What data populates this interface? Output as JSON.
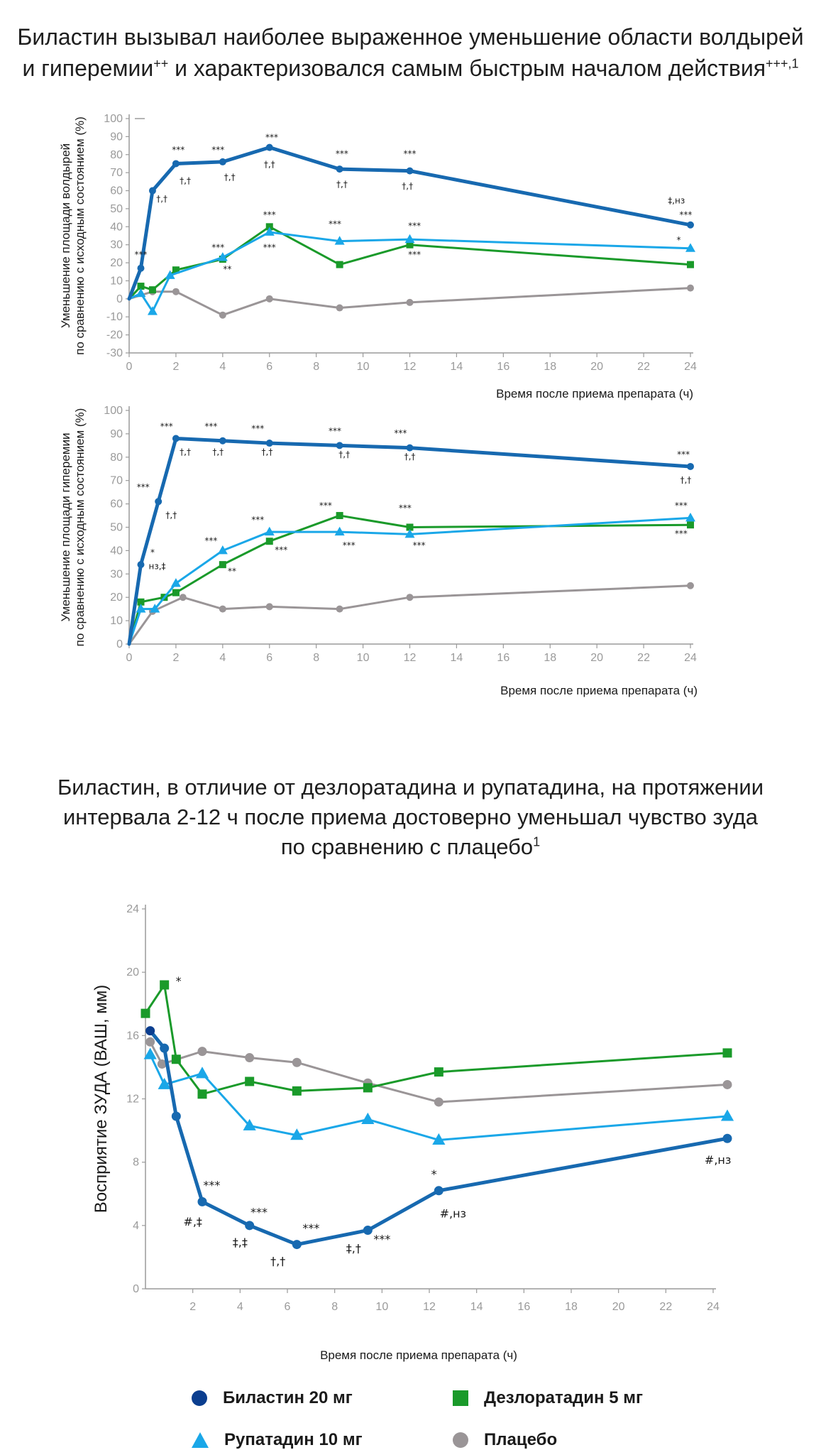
{
  "heading1": {
    "line1": "Биластин вызывал наиболее выраженное уменьшение области волдырей",
    "line2": "и гиперемии",
    "line2_sup1": "++",
    "line2_rest": " и характеризовался самым быстрым началом действия",
    "line2_sup2": "+++,1"
  },
  "heading2": {
    "line1": "Биластин, в отличие от дезлоратадина и рупатадина, на протяжении",
    "line2": "интервала 2-12 ч после приема достоверно уменьшал чувство зуда",
    "line3": "по сравнению с плацебо",
    "line3_sup": "1"
  },
  "colors": {
    "bilastine": "#1769b0",
    "bilastine_dark": "#0b3e8f",
    "desloratadine": "#1a9a2a",
    "rupatadine": "#1aa7e8",
    "placebo": "#9a9597",
    "axis": "#9a9a9a"
  },
  "legend": {
    "bilastine": "Биластин 20 мг",
    "desloratadine": "Дезлоратадин 5 мг",
    "rupatadine": "Рупатадин 10 мг",
    "placebo": "Плацебо"
  },
  "chart_data": [
    {
      "type": "line",
      "title": "",
      "xlabel": "Время после приема препарата (ч)",
      "ylabel_line1": "Уменьшение площади волдырей",
      "ylabel_line2": "по сравнению с исходным состоянием (%)",
      "xlim": [
        0,
        24
      ],
      "ylim": [
        -30,
        100
      ],
      "x_ticks": [
        "0",
        "2",
        "4",
        "6",
        "8",
        "10",
        "12",
        "14",
        "16",
        "18",
        "20",
        "22",
        "24"
      ],
      "y_ticks": [
        "100",
        "90",
        "80",
        "70",
        "60",
        "50",
        "40",
        "30",
        "20",
        "10",
        "0",
        "-10",
        "-20",
        "-30"
      ],
      "series": [
        {
          "key": "bilastine",
          "points": [
            [
              0,
              0
            ],
            [
              0.5,
              17
            ],
            [
              1,
              60
            ],
            [
              2,
              75
            ],
            [
              4,
              76
            ],
            [
              6,
              84
            ],
            [
              9,
              72
            ],
            [
              12,
              71
            ],
            [
              24,
              41
            ]
          ]
        },
        {
          "key": "rupatadine",
          "points": [
            [
              0,
              0
            ],
            [
              0.5,
              3
            ],
            [
              1,
              -7
            ],
            [
              1.75,
              13
            ],
            [
              4,
              23
            ],
            [
              6,
              37
            ],
            [
              9,
              32
            ],
            [
              12,
              33
            ],
            [
              24,
              28
            ]
          ]
        },
        {
          "key": "desloratadine",
          "points": [
            [
              0,
              0
            ],
            [
              0.5,
              7
            ],
            [
              1,
              5
            ],
            [
              2,
              16
            ],
            [
              4,
              22
            ],
            [
              6,
              40
            ],
            [
              9,
              19
            ],
            [
              12,
              30
            ],
            [
              24,
              19
            ]
          ]
        },
        {
          "key": "placebo",
          "points": [
            [
              0,
              0
            ],
            [
              1,
              4
            ],
            [
              2,
              4
            ],
            [
              4,
              -9
            ],
            [
              6,
              0
            ],
            [
              9,
              -5
            ],
            [
              12,
              -2
            ],
            [
              24,
              6
            ]
          ]
        }
      ],
      "annotations": [
        {
          "x": 0.5,
          "y": 23,
          "text": "***"
        },
        {
          "x": 1.4,
          "y": 54,
          "text": "†,†"
        },
        {
          "x": 2.1,
          "y": 81,
          "text": "***"
        },
        {
          "x": 2.4,
          "y": 64,
          "text": "†,†"
        },
        {
          "x": 3.8,
          "y": 81,
          "text": "***"
        },
        {
          "x": 4.3,
          "y": 66,
          "text": "†,†"
        },
        {
          "x": 6.1,
          "y": 88,
          "text": "***"
        },
        {
          "x": 6.0,
          "y": 73,
          "text": "†,†"
        },
        {
          "x": 9.1,
          "y": 79,
          "text": "***"
        },
        {
          "x": 9.1,
          "y": 62,
          "text": "†,†"
        },
        {
          "x": 12.0,
          "y": 79,
          "text": "***"
        },
        {
          "x": 11.9,
          "y": 61,
          "text": "†,†"
        },
        {
          "x": 23.4,
          "y": 53,
          "text": "‡,нз"
        },
        {
          "x": 23.8,
          "y": 45,
          "text": "***"
        },
        {
          "x": 3.8,
          "y": 27,
          "text": "***"
        },
        {
          "x": 4.2,
          "y": 15,
          "text": "**"
        },
        {
          "x": 6.0,
          "y": 45,
          "text": "***"
        },
        {
          "x": 6.0,
          "y": 27,
          "text": "***"
        },
        {
          "x": 8.8,
          "y": 40,
          "text": "***"
        },
        {
          "x": 12.2,
          "y": 39,
          "text": "***"
        },
        {
          "x": 12.2,
          "y": 23,
          "text": "***"
        },
        {
          "x": 23.5,
          "y": 31,
          "text": "*"
        }
      ]
    },
    {
      "type": "line",
      "title": "",
      "xlabel": "Время после приема препарата (ч)",
      "ylabel_line1": "Уменьшение площади гиперемии",
      "ylabel_line2": "по сравнению с исходным состоянием (%)",
      "xlim": [
        0,
        24
      ],
      "ylim": [
        0,
        100
      ],
      "x_ticks": [
        "0",
        "2",
        "4",
        "6",
        "8",
        "10",
        "12",
        "14",
        "16",
        "18",
        "20",
        "22",
        "24"
      ],
      "y_ticks": [
        "100",
        "90",
        "80",
        "70",
        "60",
        "50",
        "40",
        "30",
        "20",
        "10",
        "0"
      ],
      "series": [
        {
          "key": "bilastine",
          "points": [
            [
              0,
              0
            ],
            [
              0.5,
              34
            ],
            [
              1.25,
              61
            ],
            [
              2,
              88
            ],
            [
              4,
              87
            ],
            [
              6,
              86
            ],
            [
              9,
              85
            ],
            [
              12,
              84
            ],
            [
              24,
              76
            ]
          ]
        },
        {
          "key": "rupatadine",
          "points": [
            [
              0,
              0
            ],
            [
              0.5,
              15
            ],
            [
              1.1,
              15
            ],
            [
              2,
              26
            ],
            [
              4,
              40
            ],
            [
              6,
              48
            ],
            [
              9,
              48
            ],
            [
              12,
              47
            ],
            [
              24,
              54
            ]
          ]
        },
        {
          "key": "desloratadine",
          "points": [
            [
              0,
              0
            ],
            [
              0.5,
              18
            ],
            [
              1.5,
              20
            ],
            [
              2,
              22
            ],
            [
              4,
              34
            ],
            [
              6,
              44
            ],
            [
              9,
              55
            ],
            [
              12,
              50
            ],
            [
              24,
              51
            ]
          ]
        },
        {
          "key": "placebo",
          "points": [
            [
              0,
              0
            ],
            [
              1,
              14
            ],
            [
              2.3,
              20
            ],
            [
              4,
              15
            ],
            [
              6,
              16
            ],
            [
              9,
              15
            ],
            [
              12,
              20
            ],
            [
              24,
              25
            ]
          ]
        }
      ],
      "annotations": [
        {
          "x": 0.6,
          "y": 66,
          "text": "***"
        },
        {
          "x": 1.8,
          "y": 54,
          "text": "†,†"
        },
        {
          "x": 1.6,
          "y": 92,
          "text": "***"
        },
        {
          "x": 2.4,
          "y": 81,
          "text": "†,†"
        },
        {
          "x": 3.5,
          "y": 92,
          "text": "***"
        },
        {
          "x": 3.8,
          "y": 81,
          "text": "†,†"
        },
        {
          "x": 5.5,
          "y": 91,
          "text": "***"
        },
        {
          "x": 5.9,
          "y": 81,
          "text": "†,†"
        },
        {
          "x": 8.8,
          "y": 90,
          "text": "***"
        },
        {
          "x": 9.2,
          "y": 80,
          "text": "†,†"
        },
        {
          "x": 11.6,
          "y": 89,
          "text": "***"
        },
        {
          "x": 12.0,
          "y": 79,
          "text": "†,†"
        },
        {
          "x": 23.7,
          "y": 80,
          "text": "***"
        },
        {
          "x": 23.8,
          "y": 69,
          "text": "†,†"
        },
        {
          "x": 1.0,
          "y": 38,
          "text": "*"
        },
        {
          "x": 1.2,
          "y": 32,
          "text": "нз,‡"
        },
        {
          "x": 3.5,
          "y": 43,
          "text": "***"
        },
        {
          "x": 4.4,
          "y": 30,
          "text": "**"
        },
        {
          "x": 5.5,
          "y": 52,
          "text": "***"
        },
        {
          "x": 6.5,
          "y": 39,
          "text": "***"
        },
        {
          "x": 8.4,
          "y": 58,
          "text": "***"
        },
        {
          "x": 9.4,
          "y": 41,
          "text": "***"
        },
        {
          "x": 11.8,
          "y": 57,
          "text": "***"
        },
        {
          "x": 12.4,
          "y": 41,
          "text": "***"
        },
        {
          "x": 23.6,
          "y": 58,
          "text": "***"
        },
        {
          "x": 23.6,
          "y": 46,
          "text": "***"
        }
      ]
    },
    {
      "type": "line",
      "title": "",
      "xlabel": "Время после приема препарата (ч)",
      "ylabel": "Восприятие ЗУДА (ВАШ, мм)",
      "xlim": [
        0,
        24
      ],
      "ylim": [
        0,
        24
      ],
      "x_ticks": [
        "2",
        "4",
        "6",
        "8",
        "10",
        "12",
        "14",
        "16",
        "18",
        "20",
        "22",
        "24"
      ],
      "y_ticks": [
        "24",
        "20",
        "16",
        "12",
        "8",
        "4",
        "0"
      ],
      "series": [
        {
          "key": "bilastine",
          "points": [
            [
              0.2,
              16.3
            ],
            [
              0.8,
              15.2
            ],
            [
              1.3,
              10.9
            ],
            [
              2.4,
              5.5
            ],
            [
              4.4,
              4.0
            ],
            [
              6.4,
              2.8
            ],
            [
              9.4,
              3.7
            ],
            [
              12.4,
              6.2
            ],
            [
              24.6,
              9.5
            ]
          ]
        },
        {
          "key": "rupatadine",
          "points": [
            [
              0.2,
              14.8
            ],
            [
              0.8,
              12.9
            ],
            [
              2.4,
              13.6
            ],
            [
              4.4,
              10.3
            ],
            [
              6.4,
              9.7
            ],
            [
              9.4,
              10.7
            ],
            [
              12.4,
              9.4
            ],
            [
              24.6,
              10.9
            ]
          ]
        },
        {
          "key": "desloratadine",
          "points": [
            [
              0,
              17.4
            ],
            [
              0.8,
              19.2
            ],
            [
              1.3,
              14.5
            ],
            [
              2.4,
              12.3
            ],
            [
              4.4,
              13.1
            ],
            [
              6.4,
              12.5
            ],
            [
              9.4,
              12.7
            ],
            [
              12.4,
              13.7
            ],
            [
              24.6,
              14.9
            ]
          ]
        },
        {
          "key": "placebo",
          "points": [
            [
              0.2,
              15.6
            ],
            [
              0.7,
              14.2
            ],
            [
              2.4,
              15.0
            ],
            [
              4.4,
              14.6
            ],
            [
              6.4,
              14.3
            ],
            [
              9.4,
              13.0
            ],
            [
              12.4,
              11.8
            ],
            [
              24.6,
              12.9
            ]
          ]
        }
      ],
      "annotations": [
        {
          "x": 1.4,
          "y": 19.2,
          "text": "*"
        },
        {
          "x": 2.8,
          "y": 6.3,
          "text": "***"
        },
        {
          "x": 2.0,
          "y": 4.0,
          "text": "#,‡"
        },
        {
          "x": 4.8,
          "y": 4.6,
          "text": "***"
        },
        {
          "x": 4.0,
          "y": 2.7,
          "text": "‡,‡"
        },
        {
          "x": 7.0,
          "y": 3.6,
          "text": "***"
        },
        {
          "x": 5.6,
          "y": 1.5,
          "text": "†,†"
        },
        {
          "x": 10.0,
          "y": 2.9,
          "text": "***"
        },
        {
          "x": 8.8,
          "y": 2.3,
          "text": "‡,†"
        },
        {
          "x": 12.2,
          "y": 7.0,
          "text": "*"
        },
        {
          "x": 13.0,
          "y": 4.5,
          "text": "#,нз"
        },
        {
          "x": 24.2,
          "y": 7.9,
          "text": "#,нз"
        }
      ]
    }
  ]
}
